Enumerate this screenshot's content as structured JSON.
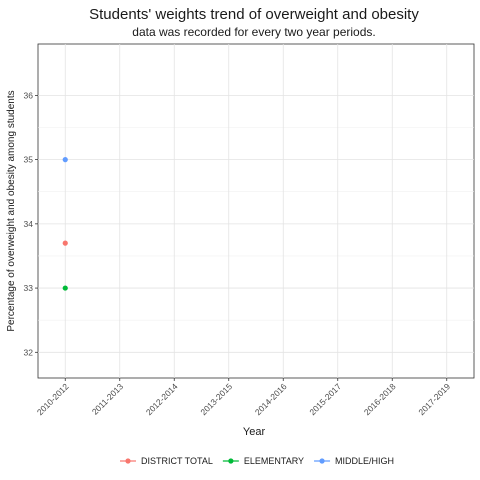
{
  "chart_data": {
    "type": "scatter",
    "title": "Students' weights trend of overweight and obesity",
    "subtitle": "data was recorded for every two year periods.",
    "xlabel": "Year",
    "ylabel": "Percentage of overweight and obesity among students",
    "categories": [
      "2010-2012",
      "2011-2013",
      "2012-2014",
      "2013-2015",
      "2014-2016",
      "2015-2017",
      "2016-2018",
      "2017-2019"
    ],
    "ylim": [
      31.6,
      36.8
    ],
    "yticks": [
      32,
      33,
      34,
      35,
      36
    ],
    "grid": true,
    "legend_position": "bottom",
    "series": [
      {
        "name": "DISTRICT TOTAL",
        "color": "#F8766D",
        "values": [
          33.7,
          null,
          null,
          null,
          null,
          null,
          null,
          null
        ]
      },
      {
        "name": "ELEMENTARY",
        "color": "#00BA38",
        "values": [
          33.0,
          null,
          null,
          null,
          null,
          null,
          null,
          null
        ]
      },
      {
        "name": "MIDDLE/HIGH",
        "color": "#619CFF",
        "values": [
          35.0,
          null,
          null,
          null,
          null,
          null,
          null,
          null
        ]
      }
    ]
  }
}
